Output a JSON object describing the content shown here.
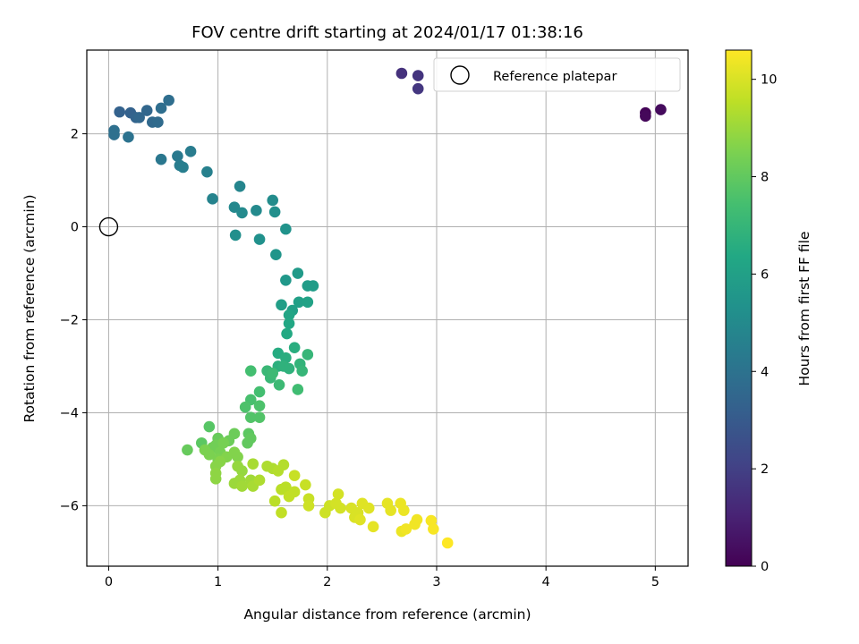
{
  "chart_data": {
    "type": "scatter",
    "title": "FOV centre drift starting at 2024/01/17 01:38:16",
    "xlabel": "Angular distance from reference (arcmin)",
    "ylabel": "Rotation from reference (arcmin)",
    "xlim": [
      -0.2,
      5.3
    ],
    "ylim": [
      -7.3,
      3.8
    ],
    "xticks": [
      0,
      1,
      2,
      3,
      4,
      5
    ],
    "yticks": [
      -6,
      -4,
      -2,
      0,
      2
    ],
    "grid": true,
    "legend": {
      "position": "top-right",
      "entries": [
        {
          "label": "Reference platepar",
          "marker": "open-circle"
        }
      ]
    },
    "reference_point": {
      "x": 0,
      "y": 0
    },
    "colorbar": {
      "label": "Hours from first FF file",
      "colormap": "viridis",
      "range": [
        0,
        10.6
      ],
      "ticks": [
        0,
        2,
        4,
        6,
        8,
        10
      ]
    },
    "points": [
      {
        "x": 4.91,
        "y": 2.45,
        "c": 0.1
      },
      {
        "x": 4.91,
        "y": 2.38,
        "c": 0.2
      },
      {
        "x": 5.05,
        "y": 2.52,
        "c": 0.3
      },
      {
        "x": 2.68,
        "y": 3.3,
        "c": 1.5
      },
      {
        "x": 2.83,
        "y": 3.25,
        "c": 1.6
      },
      {
        "x": 2.83,
        "y": 2.97,
        "c": 1.7
      },
      {
        "x": 0.1,
        "y": 2.47,
        "c": 3.3
      },
      {
        "x": 0.2,
        "y": 2.45,
        "c": 3.3
      },
      {
        "x": 0.25,
        "y": 2.35,
        "c": 3.4
      },
      {
        "x": 0.28,
        "y": 2.35,
        "c": 3.5
      },
      {
        "x": 0.35,
        "y": 2.5,
        "c": 3.5
      },
      {
        "x": 0.4,
        "y": 2.25,
        "c": 3.6
      },
      {
        "x": 0.45,
        "y": 2.25,
        "c": 3.7
      },
      {
        "x": 0.48,
        "y": 2.55,
        "c": 3.8
      },
      {
        "x": 0.55,
        "y": 2.72,
        "c": 3.8
      },
      {
        "x": 0.05,
        "y": 2.07,
        "c": 3.9
      },
      {
        "x": 0.05,
        "y": 1.98,
        "c": 3.9
      },
      {
        "x": 0.18,
        "y": 1.93,
        "c": 4.0
      },
      {
        "x": 0.48,
        "y": 1.45,
        "c": 4.2
      },
      {
        "x": 0.63,
        "y": 1.52,
        "c": 4.3
      },
      {
        "x": 0.75,
        "y": 1.62,
        "c": 4.4
      },
      {
        "x": 0.65,
        "y": 1.32,
        "c": 4.4
      },
      {
        "x": 0.68,
        "y": 1.28,
        "c": 4.5
      },
      {
        "x": 0.9,
        "y": 1.18,
        "c": 4.6
      },
      {
        "x": 0.95,
        "y": 0.6,
        "c": 4.7
      },
      {
        "x": 1.2,
        "y": 0.87,
        "c": 4.8
      },
      {
        "x": 1.15,
        "y": 0.42,
        "c": 4.9
      },
      {
        "x": 1.22,
        "y": 0.3,
        "c": 5.0
      },
      {
        "x": 1.35,
        "y": 0.35,
        "c": 5.0
      },
      {
        "x": 1.5,
        "y": 0.57,
        "c": 5.1
      },
      {
        "x": 1.52,
        "y": 0.32,
        "c": 5.2
      },
      {
        "x": 1.16,
        "y": -0.18,
        "c": 5.2
      },
      {
        "x": 1.38,
        "y": -0.27,
        "c": 5.3
      },
      {
        "x": 1.62,
        "y": -0.05,
        "c": 5.4
      },
      {
        "x": 1.53,
        "y": -0.6,
        "c": 5.5
      },
      {
        "x": 1.62,
        "y": -1.15,
        "c": 5.6
      },
      {
        "x": 1.73,
        "y": -1.0,
        "c": 5.7
      },
      {
        "x": 1.82,
        "y": -1.27,
        "c": 5.8
      },
      {
        "x": 1.87,
        "y": -1.27,
        "c": 5.8
      },
      {
        "x": 1.58,
        "y": -1.68,
        "c": 5.9
      },
      {
        "x": 1.68,
        "y": -1.8,
        "c": 6.0
      },
      {
        "x": 1.74,
        "y": -1.62,
        "c": 6.0
      },
      {
        "x": 1.82,
        "y": -1.62,
        "c": 6.1
      },
      {
        "x": 1.65,
        "y": -1.9,
        "c": 6.2
      },
      {
        "x": 1.65,
        "y": -2.08,
        "c": 6.3
      },
      {
        "x": 1.63,
        "y": -2.3,
        "c": 6.4
      },
      {
        "x": 1.55,
        "y": -2.72,
        "c": 6.5
      },
      {
        "x": 1.62,
        "y": -2.82,
        "c": 6.6
      },
      {
        "x": 1.7,
        "y": -2.6,
        "c": 6.6
      },
      {
        "x": 1.55,
        "y": -3.0,
        "c": 6.7
      },
      {
        "x": 1.6,
        "y": -3.0,
        "c": 6.8
      },
      {
        "x": 1.65,
        "y": -3.05,
        "c": 6.8
      },
      {
        "x": 1.75,
        "y": -2.95,
        "c": 6.9
      },
      {
        "x": 1.77,
        "y": -3.1,
        "c": 7.0
      },
      {
        "x": 1.82,
        "y": -2.75,
        "c": 7.0
      },
      {
        "x": 1.45,
        "y": -3.1,
        "c": 7.1
      },
      {
        "x": 1.48,
        "y": -3.25,
        "c": 7.1
      },
      {
        "x": 1.5,
        "y": -3.15,
        "c": 7.2
      },
      {
        "x": 1.56,
        "y": -3.4,
        "c": 7.2
      },
      {
        "x": 1.73,
        "y": -3.5,
        "c": 7.3
      },
      {
        "x": 1.3,
        "y": -3.1,
        "c": 7.4
      },
      {
        "x": 1.38,
        "y": -3.55,
        "c": 7.4
      },
      {
        "x": 1.3,
        "y": -3.72,
        "c": 7.5
      },
      {
        "x": 1.25,
        "y": -3.88,
        "c": 7.6
      },
      {
        "x": 1.38,
        "y": -3.85,
        "c": 7.6
      },
      {
        "x": 1.3,
        "y": -4.1,
        "c": 7.7
      },
      {
        "x": 1.38,
        "y": -4.1,
        "c": 7.7
      },
      {
        "x": 0.92,
        "y": -4.3,
        "c": 7.8
      },
      {
        "x": 0.85,
        "y": -4.65,
        "c": 7.9
      },
      {
        "x": 1.28,
        "y": -4.45,
        "c": 7.9
      },
      {
        "x": 1.3,
        "y": -4.55,
        "c": 8.0
      },
      {
        "x": 1.27,
        "y": -4.65,
        "c": 8.0
      },
      {
        "x": 0.72,
        "y": -4.8,
        "c": 8.1
      },
      {
        "x": 1.0,
        "y": -4.55,
        "c": 8.1
      },
      {
        "x": 1.1,
        "y": -4.6,
        "c": 8.2
      },
      {
        "x": 1.15,
        "y": -4.45,
        "c": 8.2
      },
      {
        "x": 0.95,
        "y": -4.75,
        "c": 8.3
      },
      {
        "x": 0.98,
        "y": -4.7,
        "c": 8.3
      },
      {
        "x": 1.02,
        "y": -4.85,
        "c": 8.4
      },
      {
        "x": 1.05,
        "y": -4.65,
        "c": 8.4
      },
      {
        "x": 0.88,
        "y": -4.8,
        "c": 8.5
      },
      {
        "x": 0.92,
        "y": -4.9,
        "c": 8.5
      },
      {
        "x": 1.0,
        "y": -5.0,
        "c": 8.5
      },
      {
        "x": 1.08,
        "y": -4.95,
        "c": 8.6
      },
      {
        "x": 1.15,
        "y": -4.85,
        "c": 8.6
      },
      {
        "x": 1.18,
        "y": -4.95,
        "c": 8.6
      },
      {
        "x": 0.98,
        "y": -5.15,
        "c": 8.7
      },
      {
        "x": 1.02,
        "y": -5.05,
        "c": 8.7
      },
      {
        "x": 0.98,
        "y": -5.3,
        "c": 8.8
      },
      {
        "x": 0.98,
        "y": -5.42,
        "c": 8.8
      },
      {
        "x": 1.18,
        "y": -5.15,
        "c": 8.9
      },
      {
        "x": 1.22,
        "y": -5.25,
        "c": 8.9
      },
      {
        "x": 1.15,
        "y": -5.52,
        "c": 9.0
      },
      {
        "x": 1.2,
        "y": -5.45,
        "c": 9.0
      },
      {
        "x": 1.22,
        "y": -5.58,
        "c": 9.1
      },
      {
        "x": 1.3,
        "y": -5.45,
        "c": 9.1
      },
      {
        "x": 1.32,
        "y": -5.1,
        "c": 9.2
      },
      {
        "x": 1.32,
        "y": -5.58,
        "c": 9.2
      },
      {
        "x": 1.38,
        "y": -5.45,
        "c": 9.3
      },
      {
        "x": 1.45,
        "y": -5.15,
        "c": 9.3
      },
      {
        "x": 1.5,
        "y": -5.2,
        "c": 9.3
      },
      {
        "x": 1.55,
        "y": -5.25,
        "c": 9.4
      },
      {
        "x": 1.6,
        "y": -5.12,
        "c": 9.4
      },
      {
        "x": 1.52,
        "y": -5.9,
        "c": 9.5
      },
      {
        "x": 1.58,
        "y": -5.65,
        "c": 9.5
      },
      {
        "x": 1.62,
        "y": -5.6,
        "c": 9.5
      },
      {
        "x": 1.65,
        "y": -5.8,
        "c": 9.6
      },
      {
        "x": 1.7,
        "y": -5.7,
        "c": 9.6
      },
      {
        "x": 1.58,
        "y": -6.15,
        "c": 9.6
      },
      {
        "x": 1.7,
        "y": -5.35,
        "c": 9.7
      },
      {
        "x": 1.8,
        "y": -5.55,
        "c": 9.7
      },
      {
        "x": 1.83,
        "y": -5.85,
        "c": 9.7
      },
      {
        "x": 1.83,
        "y": -6.0,
        "c": 9.8
      },
      {
        "x": 1.98,
        "y": -6.15,
        "c": 9.8
      },
      {
        "x": 2.02,
        "y": -6.0,
        "c": 9.8
      },
      {
        "x": 2.08,
        "y": -5.95,
        "c": 9.9
      },
      {
        "x": 2.1,
        "y": -5.75,
        "c": 9.9
      },
      {
        "x": 2.12,
        "y": -6.05,
        "c": 9.9
      },
      {
        "x": 2.22,
        "y": -6.05,
        "c": 10.0
      },
      {
        "x": 2.25,
        "y": -6.25,
        "c": 10.0
      },
      {
        "x": 2.28,
        "y": -6.15,
        "c": 10.0
      },
      {
        "x": 2.3,
        "y": -6.3,
        "c": 10.1
      },
      {
        "x": 2.32,
        "y": -5.95,
        "c": 10.1
      },
      {
        "x": 2.38,
        "y": -6.05,
        "c": 10.1
      },
      {
        "x": 2.42,
        "y": -6.45,
        "c": 10.2
      },
      {
        "x": 2.55,
        "y": -5.95,
        "c": 10.2
      },
      {
        "x": 2.58,
        "y": -6.1,
        "c": 10.2
      },
      {
        "x": 2.67,
        "y": -5.95,
        "c": 10.3
      },
      {
        "x": 2.7,
        "y": -6.1,
        "c": 10.3
      },
      {
        "x": 2.68,
        "y": -6.55,
        "c": 10.3
      },
      {
        "x": 2.72,
        "y": -6.5,
        "c": 10.4
      },
      {
        "x": 2.8,
        "y": -6.4,
        "c": 10.4
      },
      {
        "x": 2.82,
        "y": -6.3,
        "c": 10.4
      },
      {
        "x": 2.95,
        "y": -6.32,
        "c": 10.5
      },
      {
        "x": 2.97,
        "y": -6.5,
        "c": 10.5
      },
      {
        "x": 3.1,
        "y": -6.8,
        "c": 10.6
      }
    ]
  }
}
